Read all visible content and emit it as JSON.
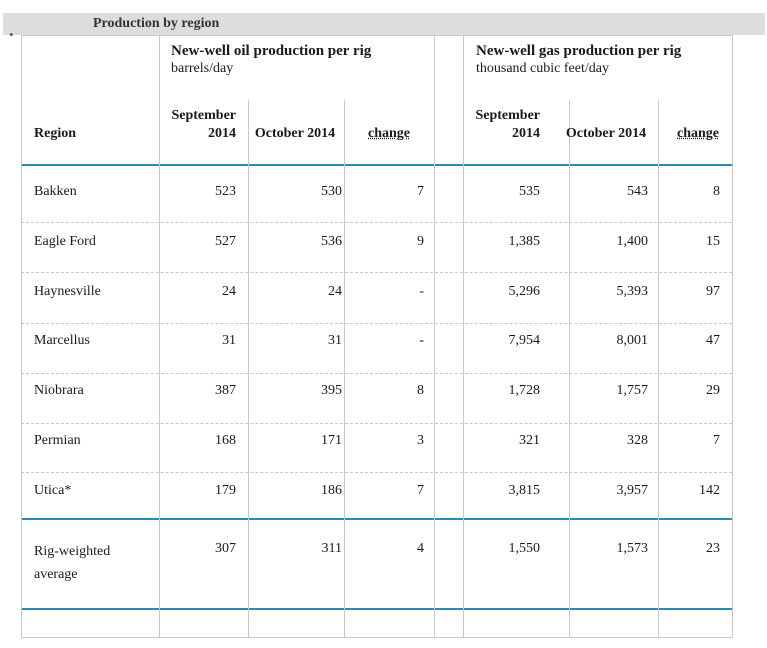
{
  "section_title": "Production by region",
  "oil_group": {
    "title": "New-well oil production per rig",
    "unit": "barrels/day"
  },
  "gas_group": {
    "title": "New-well gas production per rig",
    "unit": "thousand cubic feet/day"
  },
  "columns": {
    "region": "Region",
    "oil_sep": [
      "September",
      "2014"
    ],
    "oil_oct": "October 2014",
    "oil_chg": "change",
    "gas_sep": [
      "September",
      "2014"
    ],
    "gas_oct": "October 2014",
    "gas_chg": "change"
  },
  "rows": [
    {
      "region": [
        "Bakken"
      ],
      "oil_sep": "523",
      "oil_oct": "530",
      "oil_chg": "7",
      "gas_sep": "535",
      "gas_oct": "543",
      "gas_chg": "8"
    },
    {
      "region": [
        "Eagle Ford"
      ],
      "oil_sep": "527",
      "oil_oct": "536",
      "oil_chg": "9",
      "gas_sep": "1,385",
      "gas_oct": "1,400",
      "gas_chg": "15"
    },
    {
      "region": [
        "Haynesville"
      ],
      "oil_sep": "24",
      "oil_oct": "24",
      "oil_chg": "-",
      "gas_sep": "5,296",
      "gas_oct": "5,393",
      "gas_chg": "97"
    },
    {
      "region": [
        "Marcellus"
      ],
      "oil_sep": "31",
      "oil_oct": "31",
      "oil_chg": "-",
      "gas_sep": "7,954",
      "gas_oct": "8,001",
      "gas_chg": "47"
    },
    {
      "region": [
        "Niobrara"
      ],
      "oil_sep": "387",
      "oil_oct": "395",
      "oil_chg": "8",
      "gas_sep": "1,728",
      "gas_oct": "1,757",
      "gas_chg": "29"
    },
    {
      "region": [
        "Permian"
      ],
      "oil_sep": "168",
      "oil_oct": "171",
      "oil_chg": "3",
      "gas_sep": "321",
      "gas_oct": "328",
      "gas_chg": "7"
    },
    {
      "region": [
        "Utica*"
      ],
      "oil_sep": "179",
      "oil_oct": "186",
      "oil_chg": "7",
      "gas_sep": "3,815",
      "gas_oct": "3,957",
      "gas_chg": "142"
    },
    {
      "region": [
        "Rig-weighted",
        "average"
      ],
      "oil_sep": "307",
      "oil_oct": "311",
      "oil_chg": "4",
      "gas_sep": "1,550",
      "gas_oct": "1,573",
      "gas_chg": "23"
    }
  ]
}
